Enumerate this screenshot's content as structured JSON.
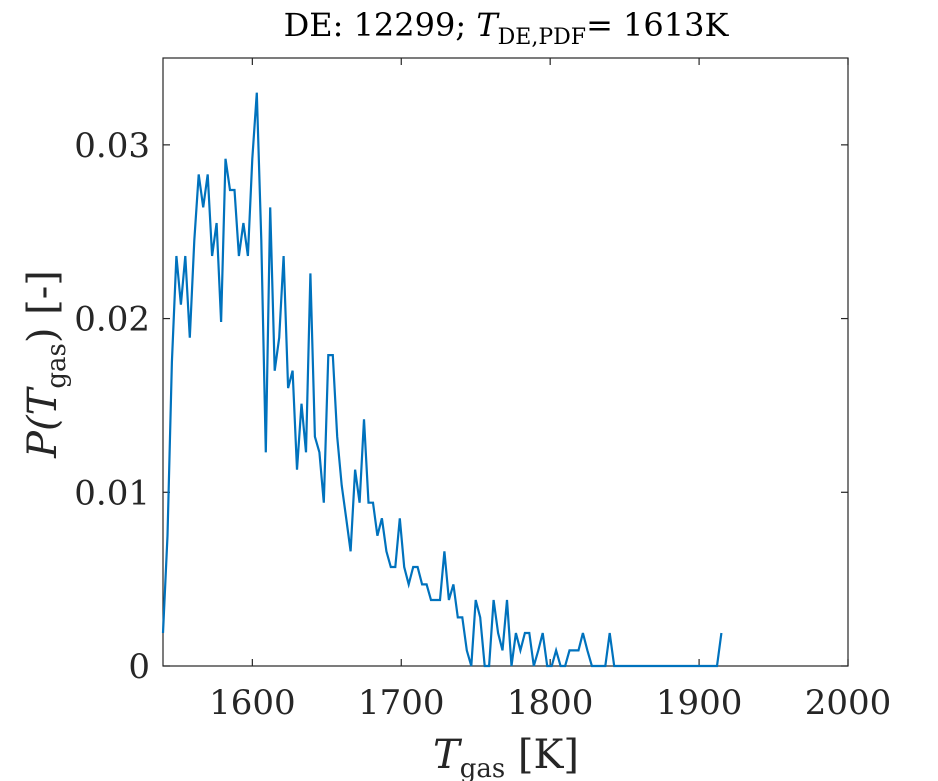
{
  "chart_data": {
    "type": "line",
    "title": {
      "prefix": "DE: 12299; ",
      "var": "T",
      "var_sub": "DE,PDF",
      "suffix": "= 1613K"
    },
    "xlabel": {
      "var": "T",
      "sub": "gas",
      "unit": " [K]"
    },
    "ylabel": {
      "pre": "P(",
      "var": "T",
      "sub": "gas",
      "post": ") [-]"
    },
    "xlim": [
      1540,
      2000
    ],
    "ylim": [
      0,
      0.035
    ],
    "xticks": [
      1600,
      1700,
      1800,
      1900,
      2000
    ],
    "xtick_labels": [
      "1600",
      "1700",
      "1800",
      "1900",
      "2000"
    ],
    "yticks": [
      0,
      0.01,
      0.02,
      0.03
    ],
    "ytick_labels": [
      "0",
      "0.01",
      "0.02",
      "0.03"
    ],
    "grid": false,
    "series_color": "#0072BD",
    "series": [
      {
        "x": [
          1540,
          1543,
          1546,
          1549,
          1552,
          1555,
          1558,
          1561,
          1564,
          1567,
          1570,
          1573,
          1576,
          1579,
          1582,
          1585,
          1588,
          1591,
          1594,
          1597,
          1600,
          1603,
          1606,
          1609,
          1612,
          1615,
          1618,
          1621,
          1624,
          1627,
          1630,
          1633,
          1636,
          1639,
          1642,
          1645,
          1648,
          1651,
          1654,
          1657,
          1660,
          1663,
          1666,
          1669,
          1672,
          1675,
          1678,
          1681,
          1684,
          1687,
          1690,
          1693,
          1696,
          1699,
          1702,
          1705,
          1708,
          1711,
          1714,
          1717,
          1720,
          1723,
          1726,
          1729,
          1732,
          1735,
          1738,
          1741,
          1744,
          1747,
          1750,
          1753,
          1756,
          1759,
          1762,
          1765,
          1768,
          1771,
          1774,
          1777,
          1780,
          1783,
          1786,
          1789,
          1792,
          1795,
          1798,
          1801,
          1804,
          1807,
          1810,
          1813,
          1816,
          1819,
          1822,
          1825,
          1828,
          1831,
          1834,
          1837,
          1840,
          1843,
          1846,
          1849,
          1852,
          1855,
          1858,
          1861,
          1864,
          1867,
          1870,
          1873,
          1876,
          1879,
          1882,
          1885,
          1888,
          1891,
          1894,
          1897,
          1900,
          1903,
          1906,
          1909,
          1912,
          1915
        ],
        "values": [
          0.0019,
          0.0075,
          0.0175,
          0.0236,
          0.0208,
          0.0236,
          0.0189,
          0.0245,
          0.0283,
          0.0264,
          0.0283,
          0.0236,
          0.0255,
          0.0198,
          0.0292,
          0.0274,
          0.0274,
          0.0236,
          0.0255,
          0.0236,
          0.0292,
          0.033,
          0.0245,
          0.0123,
          0.0264,
          0.017,
          0.0189,
          0.0236,
          0.016,
          0.017,
          0.0113,
          0.0151,
          0.0123,
          0.0226,
          0.0132,
          0.0123,
          0.0094,
          0.0179,
          0.0179,
          0.0132,
          0.0104,
          0.0085,
          0.0066,
          0.0113,
          0.0094,
          0.0142,
          0.0094,
          0.0094,
          0.0075,
          0.0085,
          0.0066,
          0.0057,
          0.0057,
          0.0085,
          0.0057,
          0.0047,
          0.0057,
          0.0057,
          0.0047,
          0.0047,
          0.0038,
          0.0038,
          0.0038,
          0.0066,
          0.0038,
          0.0047,
          0.0028,
          0.0028,
          0.0009,
          0.0,
          0.0038,
          0.0028,
          0.0,
          0.0,
          0.0038,
          0.0019,
          0.0009,
          0.0038,
          0.0,
          0.0019,
          0.0009,
          0.0019,
          0.0019,
          0.0,
          0.0009,
          0.0019,
          0.0,
          0.0,
          0.0009,
          0.0,
          0.0,
          0.0009,
          0.0009,
          0.0009,
          0.0019,
          0.0009,
          0.0,
          0.0,
          0.0,
          0.0,
          0.0019,
          0.0,
          0.0,
          0.0,
          0.0,
          0.0,
          0.0,
          0.0,
          0.0,
          0.0,
          0.0,
          0.0,
          0.0,
          0.0,
          0.0,
          0.0,
          0.0,
          0.0,
          0.0,
          0.0,
          0.0,
          0.0,
          0.0,
          0.0,
          0.0,
          0.0019
        ]
      }
    ]
  }
}
